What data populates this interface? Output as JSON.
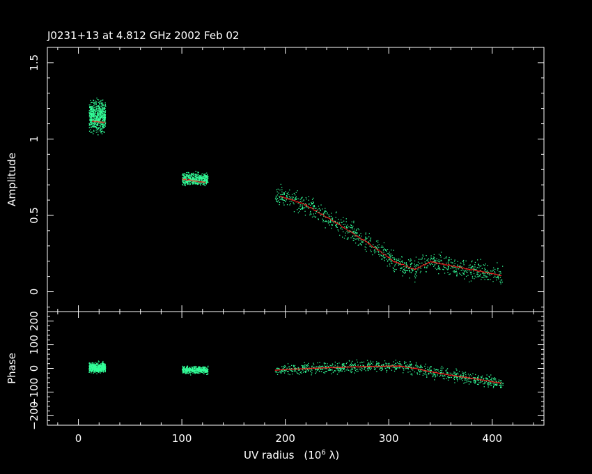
{
  "title": "J0231+13 at 4.812 GHz 2002 Feb 02",
  "colors": {
    "background": "#000000",
    "axes": "#ffffff",
    "data_points": "#33ff99",
    "model": "#ff2020"
  },
  "chart_data": [
    {
      "type": "scatter",
      "panel": "amplitude",
      "ylabel": "Amplitude",
      "xlim": [
        -30,
        450
      ],
      "ylim": [
        -0.13,
        1.6
      ],
      "x_ticks": [
        0,
        100,
        200,
        300,
        400
      ],
      "y_ticks": [
        0,
        0.5,
        1,
        1.5
      ],
      "y_tick_labels": [
        "0",
        "0.5",
        "1",
        "1.5"
      ],
      "grid": false,
      "point_clusters": [
        {
          "x_min": 10,
          "x_max": 26,
          "y_center": 1.15,
          "y_spread": 0.14,
          "count": 650
        },
        {
          "x_min": 100,
          "x_max": 125,
          "y_center": 0.74,
          "y_spread": 0.06,
          "count": 500
        },
        {
          "x_min": 190,
          "x_max": 410,
          "trend": "model",
          "y_spread": 0.06,
          "count": 900
        }
      ],
      "model_curve": [
        {
          "x": 13,
          "y": 1.12
        },
        {
          "x": 25,
          "y": 1.11
        },
        {
          "x": 100,
          "y": 0.74
        },
        {
          "x": 122,
          "y": 0.72
        },
        {
          "x": 195,
          "y": 0.63
        },
        {
          "x": 220,
          "y": 0.57
        },
        {
          "x": 250,
          "y": 0.45
        },
        {
          "x": 280,
          "y": 0.32
        },
        {
          "x": 305,
          "y": 0.2
        },
        {
          "x": 325,
          "y": 0.15
        },
        {
          "x": 340,
          "y": 0.2
        },
        {
          "x": 370,
          "y": 0.16
        },
        {
          "x": 408,
          "y": 0.11
        }
      ]
    },
    {
      "type": "scatter",
      "panel": "phase",
      "ylabel": "Phase",
      "xlabel": "UV radius",
      "xlabel_unit": "(10",
      "xlabel_unit_exp": "6",
      "xlabel_unit_end": " λ)",
      "xlim": [
        -30,
        450
      ],
      "ylim": [
        -240,
        240
      ],
      "x_ticks": [
        0,
        100,
        200,
        300,
        400
      ],
      "x_tick_labels": [
        "0",
        "100",
        "200",
        "300",
        "400"
      ],
      "y_ticks": [
        -200,
        -100,
        0,
        100,
        200
      ],
      "y_tick_labels": [
        "−200",
        "−100",
        "0",
        "100",
        "200"
      ],
      "grid": false,
      "point_clusters": [
        {
          "x_min": 10,
          "x_max": 26,
          "y_center": 5,
          "y_spread": 30,
          "count": 550
        },
        {
          "x_min": 100,
          "x_max": 125,
          "y_center": -5,
          "y_spread": 22,
          "count": 450
        },
        {
          "x_min": 190,
          "x_max": 410,
          "trend": "model",
          "y_spread": 22,
          "count": 900
        }
      ],
      "model_curve": [
        {
          "x": 190,
          "y": -5
        },
        {
          "x": 240,
          "y": 5
        },
        {
          "x": 280,
          "y": 10
        },
        {
          "x": 310,
          "y": 12
        },
        {
          "x": 325,
          "y": 2
        },
        {
          "x": 350,
          "y": -20
        },
        {
          "x": 380,
          "y": -40
        },
        {
          "x": 408,
          "y": -60
        }
      ]
    }
  ]
}
